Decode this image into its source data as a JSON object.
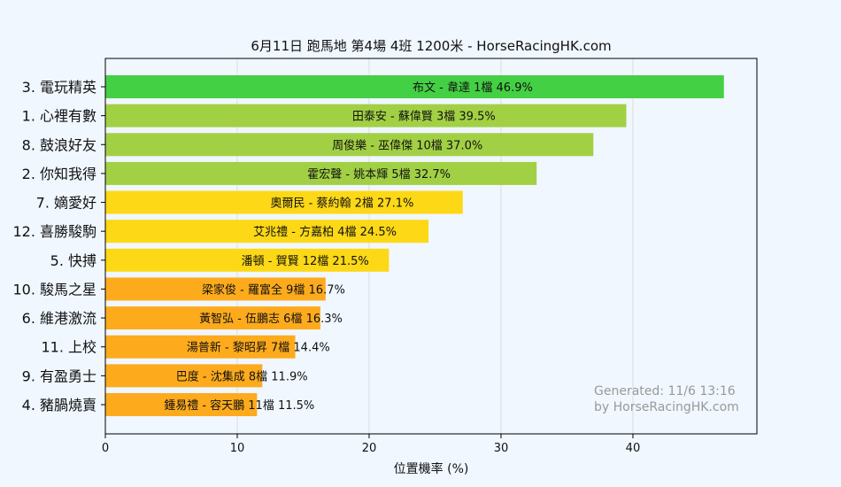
{
  "chart_data": {
    "type": "bar",
    "orientation": "horizontal",
    "title": "6月11日  跑馬地  第4場  4班  1200米 - HorseRacingHK.com",
    "xlabel": "位置機率 (%)",
    "ylabel": "",
    "xlim": [
      0,
      49.4
    ],
    "xticks": [
      "0",
      "10",
      "20",
      "30",
      "40"
    ],
    "grid": "vertical",
    "categories": [
      "3. 電玩精英",
      "1. 心裡有數",
      "8. 鼓浪好友",
      "2. 你知我得",
      "7. 嫡愛好",
      "12. 喜勝駿駒",
      "5. 快搏",
      "10. 駿馬之星",
      "6. 維港激流",
      "11. 上校",
      "9. 有盈勇士",
      "4. 豬腡燒賣"
    ],
    "values": [
      46.9,
      39.5,
      37.0,
      32.7,
      27.1,
      24.5,
      21.5,
      16.7,
      16.3,
      14.4,
      11.9,
      11.5
    ],
    "bar_labels": [
      "布文 - 韋達 1檔  46.9%",
      "田泰安 - 蘇偉賢 3檔  39.5%",
      "周俊樂 - 巫偉傑 10檔  37.0%",
      "霍宏聲 - 姚本輝 5檔  32.7%",
      "奧爾民 - 蔡約翰 2檔  27.1%",
      "艾兆禮 - 方嘉柏 4檔  24.5%",
      "潘頓 - 賀賢 12檔  21.5%",
      "梁家俊 - 羅富全 9檔  16.7%",
      "黃智弘 - 伍鵬志 6檔  16.3%",
      "湯普新 - 黎昭昇 7檔  14.4%",
      "巴度 - 沈集成 8檔  11.9%",
      "鍾易禮 - 容天鵬 11檔  11.5%"
    ],
    "colors": [
      "#44d044",
      "#a2d044",
      "#a2d044",
      "#a2d044",
      "#fcd816",
      "#fcd816",
      "#fcd816",
      "#fdab1d",
      "#fdab1d",
      "#fdab1d",
      "#fdab1d",
      "#fdab1d"
    ],
    "annotations": [
      "Generated: 11/6 13:16",
      "by HorseRacingHK.com"
    ]
  }
}
